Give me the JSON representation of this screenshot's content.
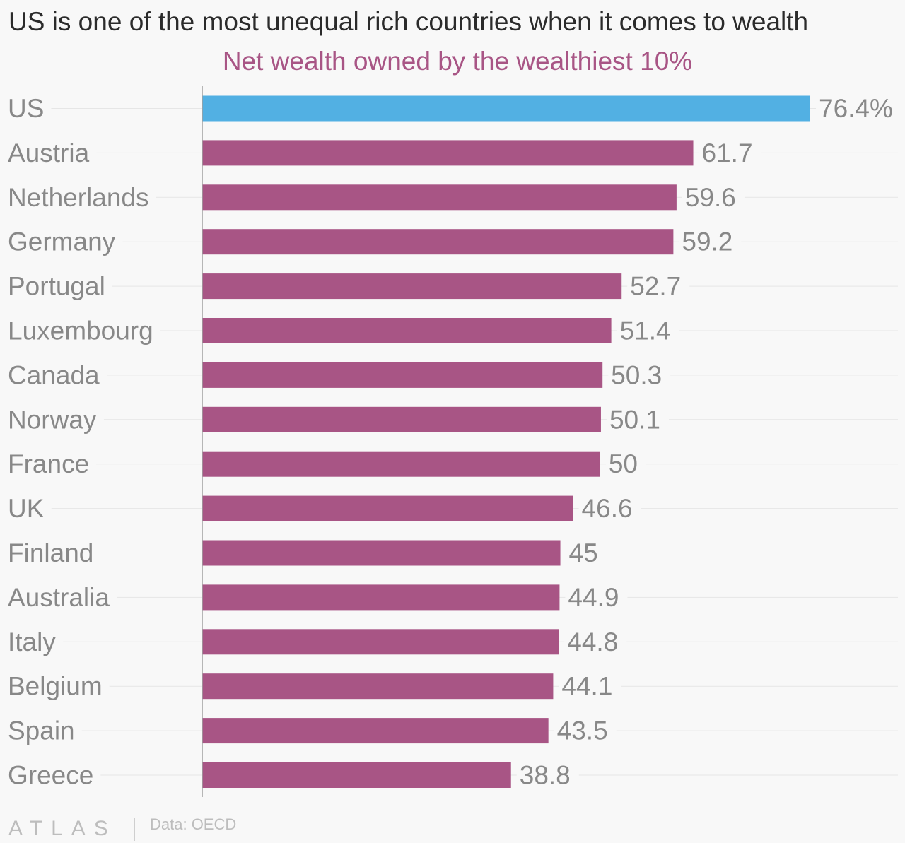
{
  "chart_data": {
    "type": "bar",
    "orientation": "horizontal",
    "title": "US is one of the most unequal rich countries when it comes to wealth",
    "subtitle": "Net wealth owned by the wealthiest 10%",
    "categories": [
      "US",
      "Austria",
      "Netherlands",
      "Germany",
      "Portugal",
      "Luxembourg",
      "Canada",
      "Norway",
      "France",
      "UK",
      "Finland",
      "Australia",
      "Italy",
      "Belgium",
      "Spain",
      "Greece"
    ],
    "values": [
      76.4,
      61.7,
      59.6,
      59.2,
      52.7,
      51.4,
      50.3,
      50.1,
      50,
      46.6,
      45,
      44.9,
      44.8,
      44.1,
      43.5,
      38.8
    ],
    "value_labels": [
      "76.4%",
      "61.7",
      "59.6",
      "59.2",
      "52.7",
      "51.4",
      "50.3",
      "50.1",
      "50",
      "46.6",
      "45",
      "44.9",
      "44.8",
      "44.1",
      "43.5",
      "38.8"
    ],
    "highlight_category": "US",
    "xlim": [
      0,
      76.4
    ],
    "colors": {
      "highlight": "#52b0e3",
      "default": "#a85585",
      "subtitle": "#a85585",
      "label": "#888888",
      "gridline": "#e6e6e6"
    },
    "legend": "none",
    "grid": "horizontal row guides"
  },
  "footer": {
    "brand": "ATLAS",
    "source": "Data: OECD"
  }
}
